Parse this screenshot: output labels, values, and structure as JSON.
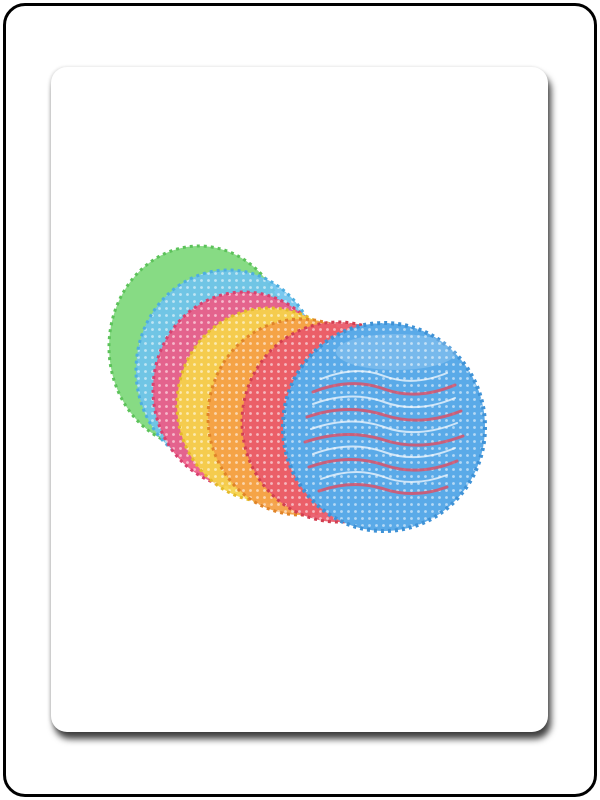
{
  "colors": {
    "frame_border": "#000000",
    "card_background": "#ffffff",
    "screens": [
      "#7dd87a",
      "#6ec3ee",
      "#ee5a86",
      "#f5d24a",
      "#f4a046",
      "#ea5a6a",
      "#5aaae8"
    ]
  },
  "image": {
    "subject_icon": "urinal-screen-product-photo",
    "screen_count": 7
  }
}
